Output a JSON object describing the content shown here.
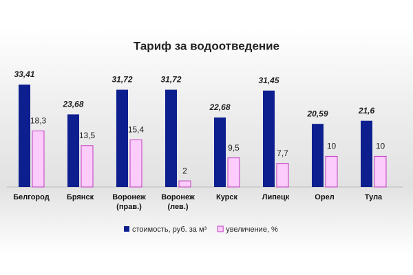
{
  "chart_data": {
    "type": "bar",
    "title": "Тариф за водоотведение",
    "categories": [
      "Белгород",
      "Брянск",
      "Воронеж (прав.)",
      "Воронеж (лев.)",
      "Курск",
      "Липецк",
      "Орел",
      "Тула"
    ],
    "series": [
      {
        "name": "стоимость, руб. за м³",
        "color": "#0d1f8f",
        "values": [
          33.41,
          23.68,
          31.72,
          31.72,
          22.68,
          31.45,
          20.59,
          21.6
        ],
        "value_labels": [
          "33,41",
          "23,68",
          "31,72",
          "31,72",
          "22,68",
          "31,45",
          "20,59",
          "21,6"
        ]
      },
      {
        "name": "увеличение, %",
        "color": "#fcccfc",
        "values": [
          18.3,
          13.5,
          15.4,
          2,
          9.5,
          7.7,
          10,
          10
        ],
        "value_labels": [
          "18,3",
          "13,5",
          "15,4",
          "2",
          "9,5",
          "7,7",
          "10",
          "10"
        ]
      }
    ]
  }
}
